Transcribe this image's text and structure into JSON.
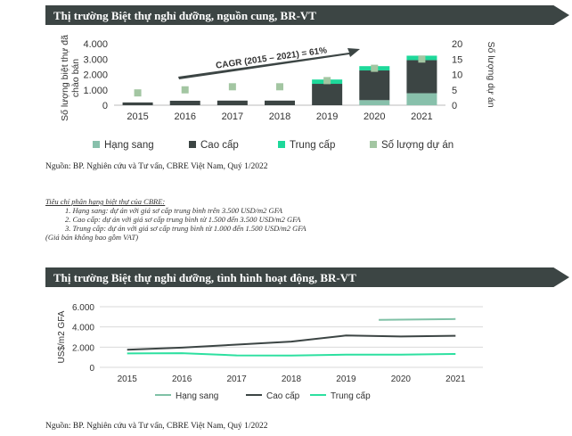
{
  "chart1": {
    "title": "Thị trường Biệt thự nghỉ dưỡng, nguồn cung, BR-VT",
    "source": "Nguồn: BP. Nghiên cứu và Tư vấn, CBRE Việt Nam, Quý 1/2022",
    "annotation": "CAGR (2015 – 2021) = 61%"
  },
  "notes": {
    "heading": "Tiêu chí phân hạng biệt thự của CBRE:",
    "items": [
      "1.    Hạng sang: dự án với giá sơ cấp trung bình trên 3.500 USD/m2 GFA",
      "2.    Cao cấp: dự án với giá sơ cấp trung bình từ 1.500 đến 3.500 USD/m2 GFA",
      "3.    Trung cấp: dự án với giá sơ cấp trung bình từ 1.000 đến 1.500 USD/m2 GFA"
    ],
    "footer": "(Giá bán không bao gồm VAT)"
  },
  "chart2": {
    "title": "Thị trường Biệt thự nghỉ dưỡng, tình hình hoạt động, BR-VT",
    "source": "Nguồn: BP. Nghiên cứu và Tư vấn, CBRE Việt Nam, Quý 1/2022"
  },
  "chart_data": [
    {
      "type": "bar",
      "stacked": true,
      "categories": [
        "2015",
        "2016",
        "2017",
        "2018",
        "2019",
        "2020",
        "2021"
      ],
      "ylabel": "Số lượng biệt thự đã chào bán",
      "y2label": "Số lượng dự án",
      "ylim": [
        0,
        4000
      ],
      "yticks": [
        "0",
        "1.000",
        "2.000",
        "3.000",
        "4.000"
      ],
      "y2lim": [
        0,
        20
      ],
      "y2ticks": [
        "0",
        "5",
        "10",
        "15",
        "20"
      ],
      "series": [
        {
          "name": "Hạng sang",
          "color": "#88c0ab",
          "values": [
            0,
            0,
            0,
            0,
            0,
            330,
            780
          ]
        },
        {
          "name": "Cao cấp",
          "color": "#3c4544",
          "values": [
            180,
            290,
            300,
            300,
            1390,
            1930,
            2150
          ]
        },
        {
          "name": "Trung cấp",
          "color": "#1ed89a",
          "values": [
            0,
            0,
            0,
            0,
            280,
            280,
            290
          ]
        }
      ],
      "line_series": {
        "name": "Số lượng dự án",
        "color": "#a3c6a2",
        "axis": "secondary",
        "values": [
          4,
          5,
          6,
          6,
          8,
          12,
          15
        ]
      },
      "legend": "bottom"
    },
    {
      "type": "line",
      "categories": [
        "2015",
        "2016",
        "2017",
        "2018",
        "2019",
        "2020",
        "2021"
      ],
      "ylabel": "US$/m2 GFA",
      "ylim": [
        0,
        6000
      ],
      "yticks": [
        "0",
        "2.000",
        "4.000",
        "6.000"
      ],
      "series": [
        {
          "name": "Hạng sang",
          "color": "#7fc1a6",
          "values": [
            null,
            null,
            null,
            null,
            null,
            4700,
            4780
          ]
        },
        {
          "name": "Cao cấp",
          "color": "#3c4544",
          "values": [
            1750,
            1950,
            2250,
            2550,
            3150,
            3050,
            3120
          ]
        },
        {
          "name": "Trung cấp",
          "color": "#2de0a0",
          "values": [
            1380,
            1400,
            1180,
            1170,
            1250,
            1250,
            1320
          ]
        }
      ],
      "grid": true,
      "legend": "bottom"
    }
  ]
}
